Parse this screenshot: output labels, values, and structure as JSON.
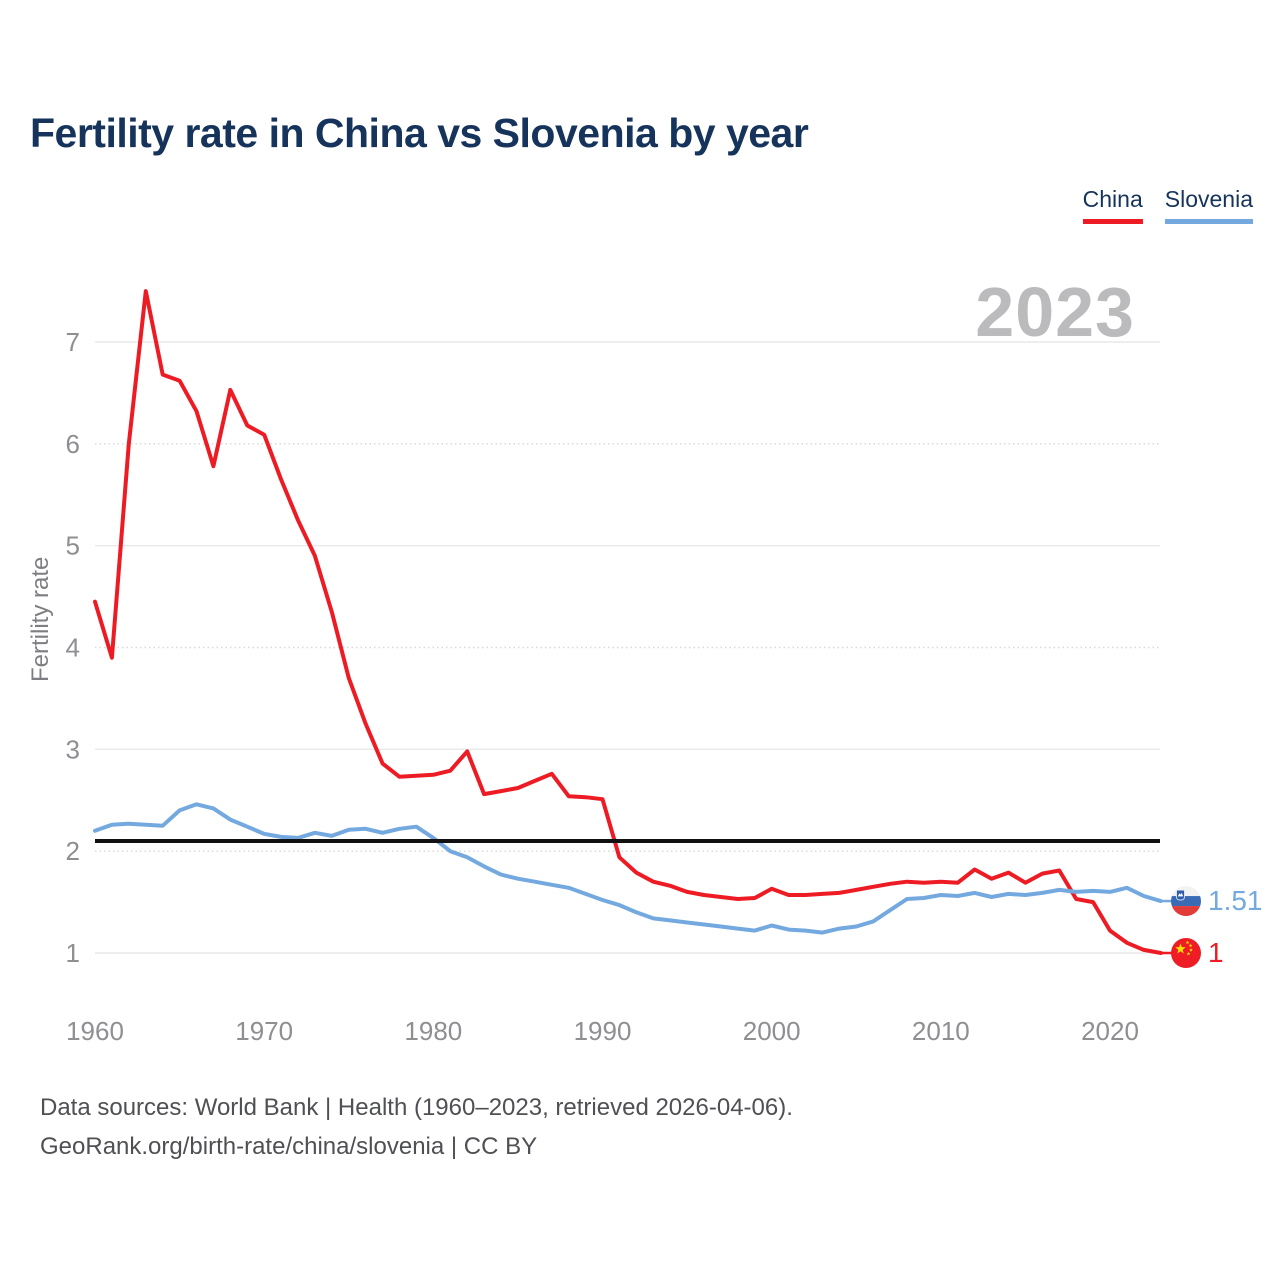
{
  "header": {
    "title": "Fertility rate in China vs Slovenia by year"
  },
  "legend": {
    "items": [
      {
        "label": "China",
        "color": "#ed1c24"
      },
      {
        "label": "Slovenia",
        "color": "#74a9df"
      }
    ]
  },
  "chart_data": {
    "type": "line",
    "title": "Fertility rate in China vs Slovenia by year",
    "xlabel": "",
    "ylabel": "Fertility rate",
    "year_watermark": "2023",
    "grid": "horizontal",
    "legend_position": "top-right",
    "xlim": [
      1960,
      2023
    ],
    "ylim": [
      0.8,
      7.6
    ],
    "x_ticks": [
      1960,
      1970,
      1980,
      1990,
      2000,
      2010,
      2020
    ],
    "y_ticks": [
      1,
      2,
      3,
      4,
      5,
      6,
      7
    ],
    "reference_line": {
      "value": 2.1,
      "color": "#111111"
    },
    "years": [
      1960,
      1961,
      1962,
      1963,
      1964,
      1965,
      1966,
      1967,
      1968,
      1969,
      1970,
      1971,
      1972,
      1973,
      1974,
      1975,
      1976,
      1977,
      1978,
      1979,
      1980,
      1981,
      1982,
      1983,
      1984,
      1985,
      1986,
      1987,
      1988,
      1989,
      1990,
      1991,
      1992,
      1993,
      1994,
      1995,
      1996,
      1997,
      1998,
      1999,
      2000,
      2001,
      2002,
      2003,
      2004,
      2005,
      2006,
      2007,
      2008,
      2009,
      2010,
      2011,
      2012,
      2013,
      2014,
      2015,
      2016,
      2017,
      2018,
      2019,
      2020,
      2021,
      2022,
      2023
    ],
    "series": [
      {
        "name": "China",
        "color": "#ed1c24",
        "end_label": "1",
        "flag": "china",
        "values": [
          4.45,
          3.9,
          6.0,
          7.5,
          6.68,
          6.62,
          6.32,
          5.78,
          6.53,
          6.18,
          6.09,
          5.65,
          5.25,
          4.9,
          4.35,
          3.7,
          3.25,
          2.86,
          2.73,
          2.74,
          2.75,
          2.79,
          2.98,
          2.56,
          2.59,
          2.62,
          2.69,
          2.76,
          2.54,
          2.53,
          2.51,
          1.94,
          1.79,
          1.7,
          1.66,
          1.6,
          1.57,
          1.55,
          1.53,
          1.54,
          1.63,
          1.57,
          1.57,
          1.58,
          1.59,
          1.62,
          1.65,
          1.68,
          1.7,
          1.69,
          1.7,
          1.69,
          1.82,
          1.73,
          1.79,
          1.69,
          1.78,
          1.81,
          1.53,
          1.5,
          1.22,
          1.1,
          1.03,
          1.0
        ]
      },
      {
        "name": "Slovenia",
        "color": "#74a9df",
        "end_label": "1.51",
        "flag": "slovenia",
        "values": [
          2.2,
          2.26,
          2.27,
          2.26,
          2.25,
          2.4,
          2.46,
          2.42,
          2.31,
          2.24,
          2.17,
          2.14,
          2.13,
          2.18,
          2.15,
          2.21,
          2.22,
          2.18,
          2.22,
          2.24,
          2.13,
          2.0,
          1.94,
          1.85,
          1.77,
          1.73,
          1.7,
          1.67,
          1.64,
          1.58,
          1.52,
          1.47,
          1.4,
          1.34,
          1.32,
          1.3,
          1.28,
          1.26,
          1.24,
          1.22,
          1.27,
          1.23,
          1.22,
          1.2,
          1.24,
          1.26,
          1.31,
          1.42,
          1.53,
          1.54,
          1.57,
          1.56,
          1.59,
          1.55,
          1.58,
          1.57,
          1.59,
          1.62,
          1.6,
          1.61,
          1.6,
          1.64,
          1.56,
          1.51
        ]
      }
    ]
  },
  "footer": {
    "line1": "Data sources: World Bank | Health (1960–2023, retrieved 2026-04-06).",
    "line2": "GeoRank.org/birth-rate/china/slovenia | CC BY"
  }
}
